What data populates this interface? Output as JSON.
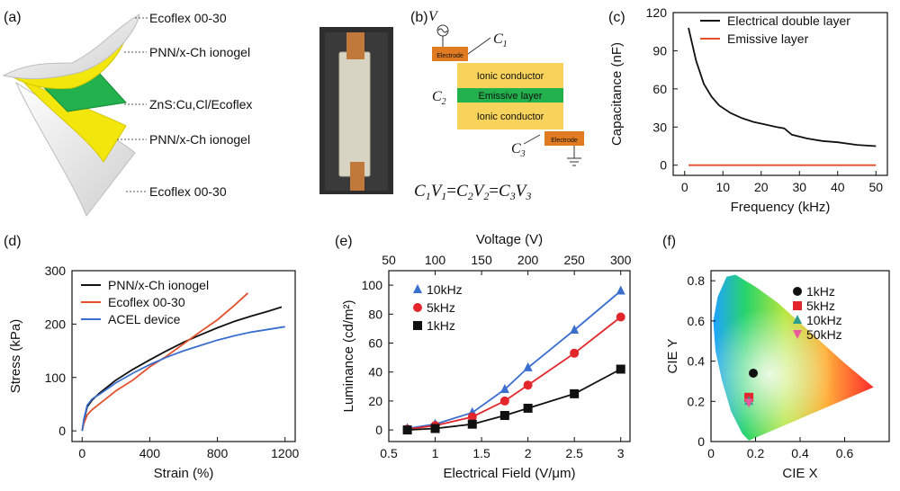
{
  "panels": {
    "a": {
      "label": "(a)",
      "layers": [
        "Ecoflex 00-30",
        "PNN/x-Ch ionogel",
        "ZnS:Cu,Cl/Ecoflex",
        "PNN/x-Ch ionogel",
        "Ecoflex 00-30"
      ],
      "colors": {
        "ecoflex": "#e6e6e6",
        "ionogel": "#f2e60c",
        "emissive": "#22b14c"
      }
    },
    "b": {
      "label": "(b)",
      "source_label": "V",
      "c1": "C",
      "c1_sub": "1",
      "c2": "C",
      "c2_sub": "2",
      "c3": "C",
      "c3_sub": "3",
      "electrode_top": "Electrode",
      "electrode_bottom": "Electrode",
      "ionic_top": "Ionic conductor",
      "emissive": "Emissive layer",
      "ionic_bottom": "Ionic conductor",
      "equation": {
        "p1": "C",
        "s1": "1",
        "p2": "V",
        "s2": "1",
        "eq1": "=",
        "p3": "C",
        "s3": "2",
        "p4": "V",
        "s4": "2",
        "eq2": "=",
        "p5": "C",
        "s5": "3",
        "p6": "V",
        "s6": "3"
      }
    },
    "c": {
      "label": "(c)"
    },
    "d": {
      "label": "(d)"
    },
    "e": {
      "label": "(e)"
    },
    "f": {
      "label": "(f)"
    }
  },
  "chart_data": [
    {
      "id": "c",
      "type": "line",
      "xlabel": "Frequency (kHz)",
      "ylabel": "Capacitance (nF)",
      "xlim": [
        -3,
        53
      ],
      "ylim": [
        -8,
        120
      ],
      "xticks": [
        0,
        10,
        20,
        30,
        40,
        50
      ],
      "yticks": [
        0,
        30,
        60,
        90,
        120
      ],
      "legend": "top-right",
      "series": [
        {
          "name": "Electrical double layer",
          "color": "#111111",
          "x": [
            1,
            3,
            5,
            7,
            9,
            12,
            15,
            18,
            21,
            24,
            26,
            28,
            32,
            36,
            40,
            45,
            50
          ],
          "y": [
            108,
            82,
            64,
            54,
            47,
            41,
            37,
            34,
            32,
            30,
            29,
            24,
            21,
            19,
            18,
            16,
            15
          ]
        },
        {
          "name": "Emissive layer",
          "color": "#e4502c",
          "x": [
            1,
            10,
            20,
            30,
            40,
            50
          ],
          "y": [
            0,
            0,
            0,
            0,
            0,
            0
          ]
        }
      ]
    },
    {
      "id": "d",
      "type": "line",
      "xlabel": "Strain (%)",
      "ylabel": "Stress (kPa)",
      "xlim": [
        -60,
        1260
      ],
      "ylim": [
        -20,
        300
      ],
      "xticks": [
        0,
        400,
        800,
        1200
      ],
      "yticks": [
        0,
        100,
        200,
        300
      ],
      "legend": "top-left",
      "series": [
        {
          "name": "PNN/x-Ch ionogel",
          "color": "#111111",
          "x": [
            0,
            10,
            30,
            60,
            100,
            200,
            300,
            400,
            500,
            600,
            700,
            800,
            900,
            1000,
            1100,
            1180
          ],
          "y": [
            0,
            20,
            45,
            58,
            70,
            95,
            115,
            133,
            150,
            166,
            180,
            193,
            205,
            215,
            224,
            232
          ]
        },
        {
          "name": "Ecoflex 00-30",
          "color": "#e4502c",
          "x": [
            0,
            10,
            30,
            60,
            100,
            200,
            300,
            400,
            500,
            600,
            700,
            800,
            900,
            980
          ],
          "y": [
            0,
            14,
            30,
            40,
            50,
            75,
            95,
            120,
            140,
            163,
            186,
            208,
            235,
            258
          ]
        },
        {
          "name": "ACEL device",
          "color": "#3a6fd0",
          "x": [
            0,
            10,
            30,
            60,
            100,
            200,
            300,
            400,
            500,
            600,
            700,
            800,
            900,
            1000,
            1100,
            1200
          ],
          "y": [
            0,
            22,
            48,
            60,
            68,
            90,
            108,
            124,
            138,
            150,
            160,
            170,
            178,
            185,
            190,
            195
          ]
        }
      ]
    },
    {
      "id": "e",
      "type": "scatter",
      "xlabel": "Electrical Field (V/μm)",
      "x2label": "Voltage (V)",
      "ylabel": "Luminance (cd/m²)",
      "xlim": [
        0.5,
        3.1
      ],
      "ylim": [
        -8,
        110
      ],
      "xticks": [
        0.5,
        1.0,
        1.5,
        2.0,
        2.5,
        3.0
      ],
      "x2ticks": [
        50,
        100,
        150,
        200,
        250,
        300
      ],
      "yticks": [
        0,
        20,
        40,
        60,
        80,
        100
      ],
      "legend": "top-left",
      "series": [
        {
          "name": "10kHz",
          "color": "#3a6fd0",
          "marker": "triangle",
          "x": [
            0.7,
            1.0,
            1.4,
            1.75,
            2.0,
            2.5,
            3.0
          ],
          "y": [
            1,
            4,
            12,
            28,
            43,
            69,
            96
          ]
        },
        {
          "name": "5kHz",
          "color": "#e3262b",
          "marker": "circle",
          "x": [
            0.7,
            1.0,
            1.4,
            1.75,
            2.0,
            2.5,
            3.0
          ],
          "y": [
            0.5,
            3,
            9,
            20,
            31,
            53,
            78
          ]
        },
        {
          "name": "1kHz",
          "color": "#111111",
          "marker": "square",
          "x": [
            0.7,
            1.0,
            1.4,
            1.75,
            2.0,
            2.5,
            3.0
          ],
          "y": [
            0,
            1,
            4,
            10,
            15,
            25,
            42
          ]
        }
      ]
    },
    {
      "id": "f",
      "type": "scatter",
      "xlabel": "CIE X",
      "ylabel": "CIE Y",
      "xlim": [
        0,
        0.8
      ],
      "ylim": [
        0,
        0.85
      ],
      "xticks": [
        0,
        0.2,
        0.4,
        0.6
      ],
      "yticks": [
        0,
        0.2,
        0.4,
        0.6,
        0.8
      ],
      "legend": "top-right",
      "series": [
        {
          "name": "1kHz",
          "color": "#111111",
          "marker": "circle",
          "x": [
            0.19
          ],
          "y": [
            0.34
          ]
        },
        {
          "name": "5kHz",
          "color": "#e3262b",
          "marker": "square",
          "x": [
            0.17
          ],
          "y": [
            0.22
          ]
        },
        {
          "name": "10kHz",
          "color": "#2a9d8f",
          "marker": "triangle",
          "x": [
            0.17
          ],
          "y": [
            0.2
          ]
        },
        {
          "name": "50kHz",
          "color": "#e85a9a",
          "marker": "triangle-down",
          "x": [
            0.17
          ],
          "y": [
            0.19
          ]
        }
      ]
    }
  ]
}
